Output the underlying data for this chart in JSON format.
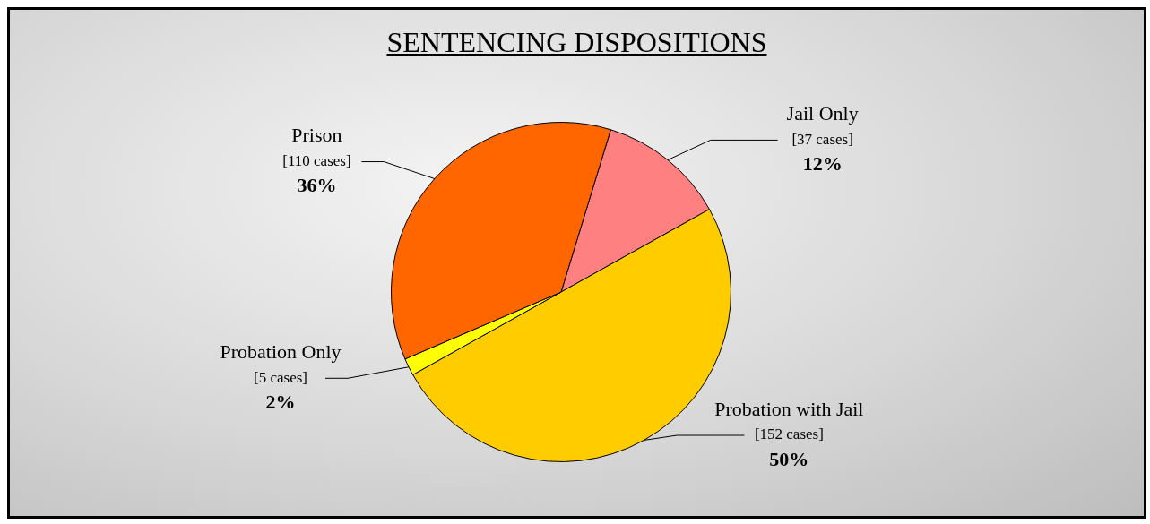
{
  "chart_data": {
    "type": "pie",
    "title": "SENTENCING DISPOSITIONS",
    "categories": [
      "Jail Only",
      "Probation with Jail",
      "Probation Only",
      "Prison"
    ],
    "values": [
      37,
      152,
      5,
      110
    ],
    "colors": [
      "#ff8080",
      "#ffcc00",
      "#ffff00",
      "#ff6600"
    ],
    "value_labels": [
      "[37 cases]\n12%",
      "[152 cases]\n50%",
      "[5 cases]\n2%",
      "[110 cases]\n36%"
    ],
    "legend": false
  }
}
